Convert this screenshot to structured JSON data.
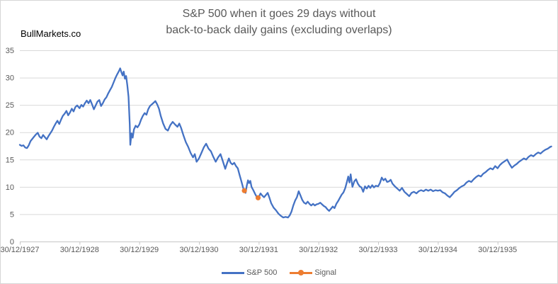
{
  "watermark": "BullMarkets.co",
  "title": {
    "line1": "S&P 500 when it goes 29 days without",
    "line2": "back-to-back daily gains (excluding overlaps)"
  },
  "colors": {
    "sp500": "#4472C4",
    "signal": "#ED7D31",
    "grid": "#D9D9D9",
    "axis": "#C6C6C6",
    "tick_text": "#595959",
    "title_text": "#595959"
  },
  "chart_data": {
    "type": "line",
    "title": "S&P 500 when it goes 29 days without back-to-back daily gains (excluding overlaps)",
    "xlabel": "",
    "ylabel": "",
    "x_unit": "years since 30/12/1927 (axis ticks at whole years)",
    "xlim": [
      0,
      9.0
    ],
    "ylim": [
      0,
      35
    ],
    "grid": "horizontal",
    "legend_position": "bottom-center",
    "y_ticks": [
      0,
      5,
      10,
      15,
      20,
      25,
      30,
      35
    ],
    "x_tick_labels": [
      "30/12/1927",
      "30/12/1928",
      "30/12/1929",
      "30/12/1930",
      "30/12/1931",
      "30/12/1932",
      "30/12/1933",
      "30/12/1934",
      "30/12/1935"
    ],
    "series": [
      {
        "name": "S&P 500",
        "color": "#4472C4",
        "marker": "none",
        "points": [
          [
            0,
            17.7
          ],
          [
            0.03,
            17.5
          ],
          [
            0.06,
            17.6
          ],
          [
            0.09,
            17.2
          ],
          [
            0.12,
            17.1
          ],
          [
            0.15,
            17.6
          ],
          [
            0.18,
            18.4
          ],
          [
            0.21,
            18.8
          ],
          [
            0.24,
            19.2
          ],
          [
            0.27,
            19.6
          ],
          [
            0.3,
            19.9
          ],
          [
            0.33,
            19.2
          ],
          [
            0.36,
            18.9
          ],
          [
            0.39,
            19.5
          ],
          [
            0.42,
            19.1
          ],
          [
            0.45,
            18.7
          ],
          [
            0.48,
            19.3
          ],
          [
            0.51,
            19.8
          ],
          [
            0.54,
            20.3
          ],
          [
            0.57,
            21
          ],
          [
            0.6,
            21.6
          ],
          [
            0.63,
            22.1
          ],
          [
            0.66,
            21.5
          ],
          [
            0.69,
            22.3
          ],
          [
            0.72,
            23
          ],
          [
            0.75,
            23.4
          ],
          [
            0.78,
            23.9
          ],
          [
            0.81,
            23.1
          ],
          [
            0.84,
            23.6
          ],
          [
            0.87,
            24.3
          ],
          [
            0.9,
            23.8
          ],
          [
            0.93,
            24.6
          ],
          [
            0.96,
            24.9
          ],
          [
            1,
            24.4
          ],
          [
            1.03,
            25
          ],
          [
            1.06,
            24.7
          ],
          [
            1.09,
            25.3
          ],
          [
            1.12,
            25.8
          ],
          [
            1.15,
            25.3
          ],
          [
            1.18,
            25.9
          ],
          [
            1.21,
            25.1
          ],
          [
            1.24,
            24.2
          ],
          [
            1.27,
            24.9
          ],
          [
            1.3,
            25.6
          ],
          [
            1.33,
            25.9
          ],
          [
            1.36,
            24.8
          ],
          [
            1.39,
            25.3
          ],
          [
            1.42,
            26
          ],
          [
            1.45,
            26.4
          ],
          [
            1.48,
            27.1
          ],
          [
            1.51,
            27.7
          ],
          [
            1.54,
            28.3
          ],
          [
            1.57,
            29.1
          ],
          [
            1.6,
            29.9
          ],
          [
            1.63,
            30.6
          ],
          [
            1.66,
            31.2
          ],
          [
            1.68,
            31.7
          ],
          [
            1.7,
            31
          ],
          [
            1.72,
            30.4
          ],
          [
            1.74,
            31.1
          ],
          [
            1.76,
            29.8
          ],
          [
            1.78,
            30.3
          ],
          [
            1.8,
            28.6
          ],
          [
            1.82,
            26.5
          ],
          [
            1.84,
            21.5
          ],
          [
            1.85,
            17.7
          ],
          [
            1.87,
            19.8
          ],
          [
            1.89,
            19
          ],
          [
            1.91,
            20.5
          ],
          [
            1.94,
            21.2
          ],
          [
            1.97,
            20.9
          ],
          [
            2,
            21.4
          ],
          [
            2.03,
            22.3
          ],
          [
            2.06,
            23
          ],
          [
            2.09,
            23.5
          ],
          [
            2.12,
            23.2
          ],
          [
            2.15,
            24.2
          ],
          [
            2.18,
            24.8
          ],
          [
            2.21,
            25.1
          ],
          [
            2.24,
            25.4
          ],
          [
            2.27,
            25.7
          ],
          [
            2.3,
            25.1
          ],
          [
            2.33,
            24.3
          ],
          [
            2.36,
            23
          ],
          [
            2.4,
            21.6
          ],
          [
            2.44,
            20.6
          ],
          [
            2.48,
            20.3
          ],
          [
            2.52,
            21.3
          ],
          [
            2.56,
            21.9
          ],
          [
            2.6,
            21.4
          ],
          [
            2.64,
            21
          ],
          [
            2.67,
            21.6
          ],
          [
            2.7,
            20.8
          ],
          [
            2.74,
            19.4
          ],
          [
            2.78,
            18.2
          ],
          [
            2.82,
            17.3
          ],
          [
            2.86,
            16.2
          ],
          [
            2.9,
            15.4
          ],
          [
            2.93,
            16
          ],
          [
            2.96,
            14.6
          ],
          [
            3,
            15.2
          ],
          [
            3.04,
            16.2
          ],
          [
            3.08,
            17.2
          ],
          [
            3.12,
            17.9
          ],
          [
            3.16,
            17
          ],
          [
            3.2,
            16.5
          ],
          [
            3.24,
            15.5
          ],
          [
            3.28,
            14.6
          ],
          [
            3.32,
            15.4
          ],
          [
            3.36,
            16
          ],
          [
            3.4,
            14.7
          ],
          [
            3.44,
            13.3
          ],
          [
            3.47,
            14.3
          ],
          [
            3.5,
            15.2
          ],
          [
            3.53,
            14.4
          ],
          [
            3.56,
            14.1
          ],
          [
            3.59,
            14.4
          ],
          [
            3.62,
            13.8
          ],
          [
            3.65,
            13.4
          ],
          [
            3.68,
            12.2
          ],
          [
            3.71,
            11
          ],
          [
            3.74,
            9.8
          ],
          [
            3.76,
            9.3
          ],
          [
            3.78,
            8.9
          ],
          [
            3.8,
            10.2
          ],
          [
            3.82,
            11.2
          ],
          [
            3.84,
            10.7
          ],
          [
            3.86,
            11.1
          ],
          [
            3.88,
            10
          ],
          [
            3.91,
            9.4
          ],
          [
            3.94,
            8.7
          ],
          [
            3.96,
            8.3
          ],
          [
            3.99,
            8
          ],
          [
            4,
            8.1
          ],
          [
            4.03,
            8.8
          ],
          [
            4.06,
            8.4
          ],
          [
            4.09,
            8.1
          ],
          [
            4.12,
            8.5
          ],
          [
            4.15,
            8.9
          ],
          [
            4.18,
            8
          ],
          [
            4.21,
            7
          ],
          [
            4.25,
            6.2
          ],
          [
            4.29,
            5.7
          ],
          [
            4.33,
            5.1
          ],
          [
            4.37,
            4.7
          ],
          [
            4.41,
            4.4
          ],
          [
            4.45,
            4.5
          ],
          [
            4.49,
            4.4
          ],
          [
            4.52,
            4.8
          ],
          [
            4.55,
            5.5
          ],
          [
            4.58,
            6.6
          ],
          [
            4.61,
            7.5
          ],
          [
            4.64,
            8.1
          ],
          [
            4.67,
            9.2
          ],
          [
            4.7,
            8.4
          ],
          [
            4.73,
            7.6
          ],
          [
            4.76,
            7.1
          ],
          [
            4.79,
            6.9
          ],
          [
            4.82,
            7.3
          ],
          [
            4.85,
            6.9
          ],
          [
            4.88,
            6.6
          ],
          [
            4.91,
            6.9
          ],
          [
            4.94,
            6.6
          ],
          [
            4.97,
            6.8
          ],
          [
            5,
            6.9
          ],
          [
            5.03,
            7.1
          ],
          [
            5.06,
            6.8
          ],
          [
            5.09,
            6.5
          ],
          [
            5.12,
            6.3
          ],
          [
            5.15,
            5.9
          ],
          [
            5.18,
            5.6
          ],
          [
            5.21,
            6
          ],
          [
            5.24,
            6.4
          ],
          [
            5.27,
            6.1
          ],
          [
            5.3,
            6.9
          ],
          [
            5.33,
            7.4
          ],
          [
            5.36,
            8
          ],
          [
            5.39,
            8.6
          ],
          [
            5.42,
            9
          ],
          [
            5.45,
            9.8
          ],
          [
            5.48,
            11
          ],
          [
            5.5,
            11.9
          ],
          [
            5.52,
            10.8
          ],
          [
            5.54,
            12.3
          ],
          [
            5.57,
            10
          ],
          [
            5.6,
            11
          ],
          [
            5.63,
            11.4
          ],
          [
            5.66,
            10.6
          ],
          [
            5.69,
            10.1
          ],
          [
            5.72,
            9.9
          ],
          [
            5.75,
            9.1
          ],
          [
            5.78,
            10.1
          ],
          [
            5.81,
            9.7
          ],
          [
            5.84,
            10.2
          ],
          [
            5.87,
            9.8
          ],
          [
            5.9,
            10.3
          ],
          [
            5.93,
            9.9
          ],
          [
            5.96,
            10.2
          ],
          [
            6,
            10.1
          ],
          [
            6.03,
            10.7
          ],
          [
            6.06,
            11.7
          ],
          [
            6.09,
            11.2
          ],
          [
            6.12,
            11.5
          ],
          [
            6.15,
            10.9
          ],
          [
            6.18,
            11
          ],
          [
            6.21,
            11.3
          ],
          [
            6.24,
            10.6
          ],
          [
            6.28,
            10.1
          ],
          [
            6.32,
            9.7
          ],
          [
            6.36,
            9.3
          ],
          [
            6.4,
            9.8
          ],
          [
            6.44,
            9.1
          ],
          [
            6.48,
            8.7
          ],
          [
            6.52,
            8.3
          ],
          [
            6.56,
            8.9
          ],
          [
            6.6,
            9.1
          ],
          [
            6.64,
            8.8
          ],
          [
            6.68,
            9.2
          ],
          [
            6.72,
            9.4
          ],
          [
            6.76,
            9.2
          ],
          [
            6.8,
            9.5
          ],
          [
            6.84,
            9.3
          ],
          [
            6.88,
            9.5
          ],
          [
            6.92,
            9.2
          ],
          [
            6.96,
            9.4
          ],
          [
            7,
            9.3
          ],
          [
            7.04,
            9.4
          ],
          [
            7.08,
            9
          ],
          [
            7.12,
            8.8
          ],
          [
            7.16,
            8.4
          ],
          [
            7.2,
            8.1
          ],
          [
            7.24,
            8.6
          ],
          [
            7.28,
            9.1
          ],
          [
            7.32,
            9.4
          ],
          [
            7.36,
            9.8
          ],
          [
            7.4,
            10.1
          ],
          [
            7.44,
            10.3
          ],
          [
            7.48,
            10.8
          ],
          [
            7.52,
            11.1
          ],
          [
            7.56,
            10.9
          ],
          [
            7.6,
            11.4
          ],
          [
            7.64,
            11.8
          ],
          [
            7.68,
            12.1
          ],
          [
            7.72,
            11.9
          ],
          [
            7.76,
            12.4
          ],
          [
            7.8,
            12.7
          ],
          [
            7.84,
            13.1
          ],
          [
            7.88,
            13.4
          ],
          [
            7.92,
            13.2
          ],
          [
            7.96,
            13.8
          ],
          [
            8,
            13.4
          ],
          [
            8.04,
            14
          ],
          [
            8.08,
            14.4
          ],
          [
            8.12,
            14.7
          ],
          [
            8.16,
            15
          ],
          [
            8.2,
            14.2
          ],
          [
            8.24,
            13.5
          ],
          [
            8.28,
            13.9
          ],
          [
            8.32,
            14.2
          ],
          [
            8.36,
            14.6
          ],
          [
            8.4,
            14.9
          ],
          [
            8.44,
            15.2
          ],
          [
            8.48,
            15
          ],
          [
            8.52,
            15.5
          ],
          [
            8.56,
            15.8
          ],
          [
            8.6,
            15.6
          ],
          [
            8.64,
            16
          ],
          [
            8.68,
            16.3
          ],
          [
            8.72,
            16.1
          ],
          [
            8.76,
            16.5
          ],
          [
            8.8,
            16.8
          ],
          [
            8.84,
            17
          ],
          [
            8.88,
            17.3
          ],
          [
            8.9,
            17.4
          ]
        ]
      },
      {
        "name": "Signal",
        "color": "#ED7D31",
        "marker": "circle",
        "points": [
          [
            3.76,
            9.3
          ],
          [
            3.99,
            8.0
          ]
        ]
      }
    ]
  }
}
